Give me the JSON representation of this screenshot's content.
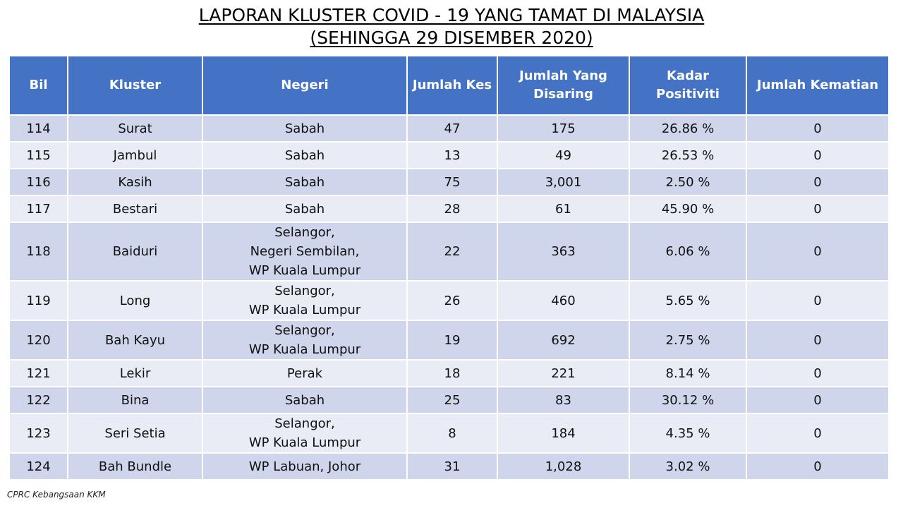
{
  "title": {
    "line1": "LAPORAN KLUSTER COVID - 19 YANG TAMAT DI MALAYSIA",
    "line2": "(SEHINGGA 29 DISEMBER 2020)"
  },
  "table": {
    "headers": [
      "Bil",
      "Kluster",
      "Negeri",
      "Jumlah Kes",
      "Jumlah Yang Disaring",
      "Kadar Positiviti",
      "Jumlah Kematian"
    ],
    "rows": [
      {
        "bil": "114",
        "kluster": "Surat",
        "negeri": [
          "Sabah"
        ],
        "kes": "47",
        "disaring": "175",
        "positiviti": "26.86 %",
        "kematian": "0"
      },
      {
        "bil": "115",
        "kluster": "Jambul",
        "negeri": [
          "Sabah"
        ],
        "kes": "13",
        "disaring": "49",
        "positiviti": "26.53 %",
        "kematian": "0"
      },
      {
        "bil": "116",
        "kluster": "Kasih",
        "negeri": [
          "Sabah"
        ],
        "kes": "75",
        "disaring": "3,001",
        "positiviti": "2.50 %",
        "kematian": "0"
      },
      {
        "bil": "117",
        "kluster": "Bestari",
        "negeri": [
          "Sabah"
        ],
        "kes": "28",
        "disaring": "61",
        "positiviti": "45.90 %",
        "kematian": "0"
      },
      {
        "bil": "118",
        "kluster": "Baiduri",
        "negeri": [
          "Selangor,",
          "Negeri Sembilan,",
          "WP Kuala Lumpur"
        ],
        "kes": "22",
        "disaring": "363",
        "positiviti": "6.06 %",
        "kematian": "0"
      },
      {
        "bil": "119",
        "kluster": "Long",
        "negeri": [
          "Selangor,",
          "WP Kuala Lumpur"
        ],
        "kes": "26",
        "disaring": "460",
        "positiviti": "5.65 %",
        "kematian": "0"
      },
      {
        "bil": "120",
        "kluster": "Bah Kayu",
        "negeri": [
          "Selangor,",
          "WP Kuala Lumpur"
        ],
        "kes": "19",
        "disaring": "692",
        "positiviti": "2.75 %",
        "kematian": "0"
      },
      {
        "bil": "121",
        "kluster": "Lekir",
        "negeri": [
          "Perak"
        ],
        "kes": "18",
        "disaring": "221",
        "positiviti": "8.14 %",
        "kematian": "0"
      },
      {
        "bil": "122",
        "kluster": "Bina",
        "negeri": [
          "Sabah"
        ],
        "kes": "25",
        "disaring": "83",
        "positiviti": "30.12 %",
        "kematian": "0"
      },
      {
        "bil": "123",
        "kluster": "Seri Setia",
        "negeri": [
          "Selangor,",
          "WP Kuala Lumpur"
        ],
        "kes": "8",
        "disaring": "184",
        "positiviti": "4.35 %",
        "kematian": "0"
      },
      {
        "bil": "124",
        "kluster": "Bah Bundle",
        "negeri": [
          "WP Labuan, Johor"
        ],
        "kes": "31",
        "disaring": "1,028",
        "positiviti": "3.02 %",
        "kematian": "0"
      }
    ]
  },
  "footer": {
    "source": "CPRC Kebangsaan KKM"
  },
  "colors": {
    "header_bg": "#4472c4",
    "row_odd": "#cfd5ea",
    "row_even": "#e9ebf5"
  }
}
